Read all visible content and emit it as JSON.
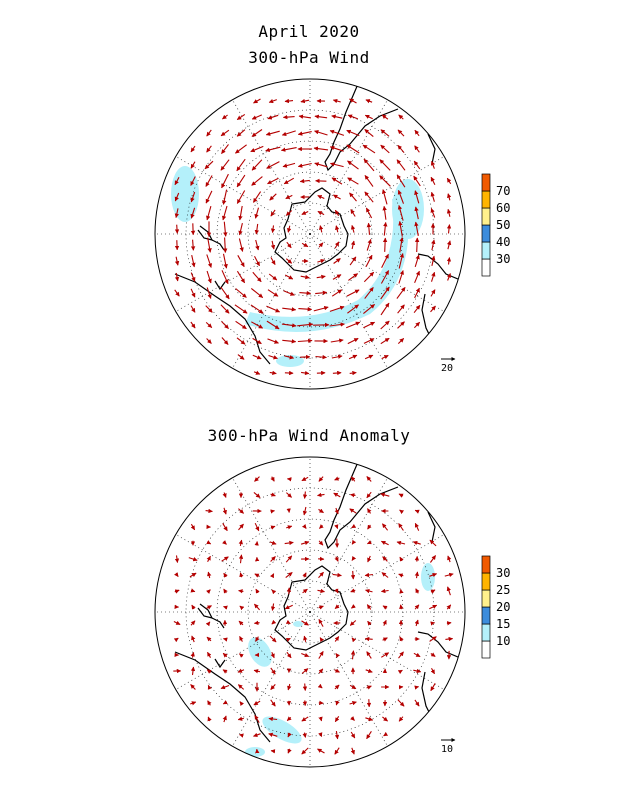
{
  "titles": {
    "line1": "April 2020",
    "line2": "300-hPa Wind",
    "line3": "300-hPa Wind Anomaly"
  },
  "maps": [
    {
      "id": "mean",
      "colorbar": {
        "levels": [
          "30",
          "40",
          "50",
          "60",
          "70"
        ],
        "colors": [
          "#ffffff",
          "#b4f0fa",
          "#3c8cdc",
          "#fff08c",
          "#ffb400",
          "#f05a00"
        ]
      },
      "ref_vector": "20",
      "shaded_speed_threshold": 30
    },
    {
      "id": "anomaly",
      "colorbar": {
        "levels": [
          "10",
          "15",
          "20",
          "25",
          "30"
        ],
        "colors": [
          "#ffffff",
          "#b4f0fa",
          "#3c8cdc",
          "#fff08c",
          "#ffb400",
          "#f05a00"
        ]
      },
      "ref_vector": "10",
      "shaded_speed_threshold": 10
    }
  ],
  "style": {
    "vector_color": "#b40000",
    "coast_color": "#000000",
    "shade_color": "#b4f0fa"
  }
}
